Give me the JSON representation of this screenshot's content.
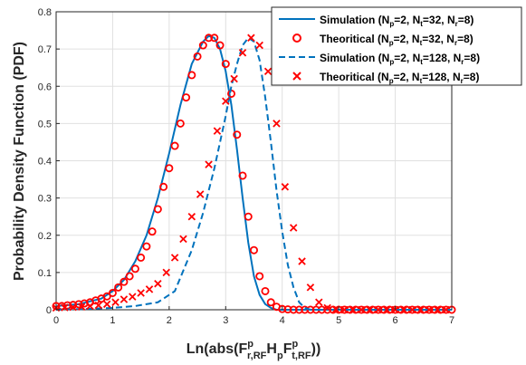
{
  "chart_data": {
    "type": "line",
    "xlabel": "Ln(abs(F^{p}_{r,RF} H_{p} F^{p}_{t,RF}))",
    "ylabel": "Probability Density Function (PDF)",
    "xlim": [
      0,
      7
    ],
    "ylim": [
      0,
      0.8
    ],
    "xticks": [
      "0",
      "1",
      "2",
      "3",
      "4",
      "5",
      "6",
      "7"
    ],
    "yticks": [
      "0",
      "0.1",
      "0.2",
      "0.3",
      "0.4",
      "0.5",
      "0.6",
      "0.7",
      "0.8"
    ],
    "grid": true,
    "legend_position": "top-right",
    "series": [
      {
        "name": "Simulation (N_p=2, N_t=32, N_r=8)",
        "style": "solid-line",
        "color": "#0072bd",
        "x": [
          0,
          0.4,
          0.8,
          1.0,
          1.2,
          1.4,
          1.6,
          1.8,
          2.0,
          2.2,
          2.4,
          2.6,
          2.7,
          2.8,
          2.9,
          3.0,
          3.1,
          3.2,
          3.3,
          3.4,
          3.5,
          3.6,
          3.7,
          3.8,
          3.9,
          4.0,
          4.2,
          7.0
        ],
        "y": [
          0.01,
          0.015,
          0.03,
          0.05,
          0.08,
          0.13,
          0.2,
          0.3,
          0.42,
          0.55,
          0.66,
          0.72,
          0.735,
          0.73,
          0.7,
          0.64,
          0.55,
          0.43,
          0.3,
          0.18,
          0.09,
          0.04,
          0.015,
          0.005,
          0.0,
          0.0,
          0.0,
          0.0
        ]
      },
      {
        "name": "Theoritical (N_p=2, N_t=32, N_r=8)",
        "style": "circle-marker",
        "color": "#ff0000",
        "x": [
          0.0,
          0.1,
          0.2,
          0.3,
          0.4,
          0.5,
          0.6,
          0.7,
          0.8,
          0.9,
          1.0,
          1.1,
          1.2,
          1.3,
          1.4,
          1.5,
          1.6,
          1.7,
          1.8,
          1.9,
          2.0,
          2.1,
          2.2,
          2.3,
          2.4,
          2.5,
          2.6,
          2.7,
          2.8,
          2.9,
          3.0,
          3.1,
          3.2,
          3.3,
          3.4,
          3.5,
          3.6,
          3.7,
          3.8,
          3.9,
          4.0,
          4.1,
          4.2,
          4.3,
          4.4,
          4.5,
          4.6,
          4.7,
          4.8,
          4.9,
          5.0,
          5.1,
          5.2,
          5.3,
          5.4,
          5.5,
          5.6,
          5.7,
          5.8,
          5.9,
          6.0,
          6.1,
          6.2,
          6.3,
          6.4,
          6.5,
          6.6,
          6.7,
          6.8,
          6.9,
          7.0
        ],
        "y": [
          0.01,
          0.01,
          0.012,
          0.013,
          0.015,
          0.017,
          0.02,
          0.025,
          0.03,
          0.036,
          0.045,
          0.06,
          0.075,
          0.09,
          0.11,
          0.14,
          0.17,
          0.21,
          0.27,
          0.33,
          0.38,
          0.44,
          0.5,
          0.57,
          0.63,
          0.68,
          0.71,
          0.73,
          0.73,
          0.71,
          0.66,
          0.58,
          0.47,
          0.36,
          0.25,
          0.16,
          0.09,
          0.05,
          0.02,
          0.008,
          0.002,
          0.001,
          0.0,
          0.0,
          0.0,
          0.0,
          0.0,
          0.0,
          0.0,
          0.0,
          0.0,
          0.0,
          0.0,
          0.0,
          0.0,
          0.0,
          0.0,
          0.0,
          0.0,
          0.0,
          0.0,
          0.0,
          0.0,
          0.0,
          0.0,
          0.0,
          0.0,
          0.0,
          0.0,
          0.0,
          0.0
        ]
      },
      {
        "name": "Simulation (N_p=2, N_t=128, N_r=8)",
        "style": "dashed-line",
        "color": "#0072bd",
        "x": [
          0,
          0.5,
          1.0,
          1.4,
          1.8,
          2.1,
          2.4,
          2.6,
          2.8,
          3.0,
          3.1,
          3.2,
          3.3,
          3.4,
          3.5,
          3.6,
          3.7,
          3.8,
          3.9,
          4.0,
          4.1,
          4.2,
          4.3,
          4.4,
          4.5,
          7.0
        ],
        "y": [
          0.0,
          0.002,
          0.005,
          0.01,
          0.02,
          0.05,
          0.16,
          0.26,
          0.38,
          0.52,
          0.6,
          0.66,
          0.71,
          0.73,
          0.72,
          0.67,
          0.57,
          0.45,
          0.32,
          0.21,
          0.12,
          0.06,
          0.02,
          0.005,
          0.0,
          0.0
        ]
      },
      {
        "name": "Theoritical (N_p=2, N_t=128, N_r=8)",
        "style": "x-marker",
        "color": "#ff0000",
        "x": [
          0.0,
          0.15,
          0.3,
          0.45,
          0.6,
          0.75,
          0.9,
          1.05,
          1.2,
          1.35,
          1.5,
          1.65,
          1.8,
          1.95,
          2.1,
          2.25,
          2.4,
          2.55,
          2.7,
          2.85,
          3.0,
          3.15,
          3.3,
          3.45,
          3.6,
          3.75,
          3.9,
          4.05,
          4.2,
          4.35,
          4.5,
          4.65,
          4.8,
          4.95,
          5.1,
          5.25,
          5.4,
          5.55,
          5.7,
          5.85,
          6.0,
          6.15,
          6.3,
          6.45,
          6.6,
          6.75,
          6.9
        ],
        "y": [
          0.005,
          0.006,
          0.007,
          0.008,
          0.01,
          0.012,
          0.015,
          0.02,
          0.028,
          0.035,
          0.045,
          0.055,
          0.07,
          0.1,
          0.14,
          0.19,
          0.25,
          0.31,
          0.39,
          0.48,
          0.56,
          0.62,
          0.69,
          0.73,
          0.71,
          0.64,
          0.5,
          0.33,
          0.22,
          0.13,
          0.06,
          0.02,
          0.005,
          0.001,
          0.0,
          0.0,
          0.0,
          0.0,
          0.0,
          0.0,
          0.0,
          0.0,
          0.0,
          0.0,
          0.0,
          0.0,
          0.0
        ]
      }
    ]
  },
  "legend": {
    "entries": [
      {
        "prefix": "Simulation (N",
        "a": "p",
        "b": "=2, N",
        "c": "t",
        "d": "=32, N",
        "e": "r",
        "f": "=8)"
      },
      {
        "prefix": "Theoritical (N",
        "a": "p",
        "b": "=2, N",
        "c": "t",
        "d": "=32, N",
        "e": "r",
        "f": "=8)"
      },
      {
        "prefix": "Simulation (N",
        "a": "p",
        "b": "=2, N",
        "c": "t",
        "d": "=128, N",
        "e": "r",
        "f": "=8)"
      },
      {
        "prefix": "Theoritical (N",
        "a": "p",
        "b": "=2, N",
        "c": "t",
        "d": "=128, N",
        "e": "r",
        "f": "=8)"
      }
    ]
  },
  "xlabel_parts": {
    "p1": "Ln(abs(F",
    "sup1": "p",
    "sub1": "r,RF",
    "p2": "H",
    "sub2": "p",
    "p3": "F",
    "sup3": "p",
    "sub3": "t,RF",
    "p4": "))"
  },
  "ylabel_text": "Probability Density Function (PDF)"
}
